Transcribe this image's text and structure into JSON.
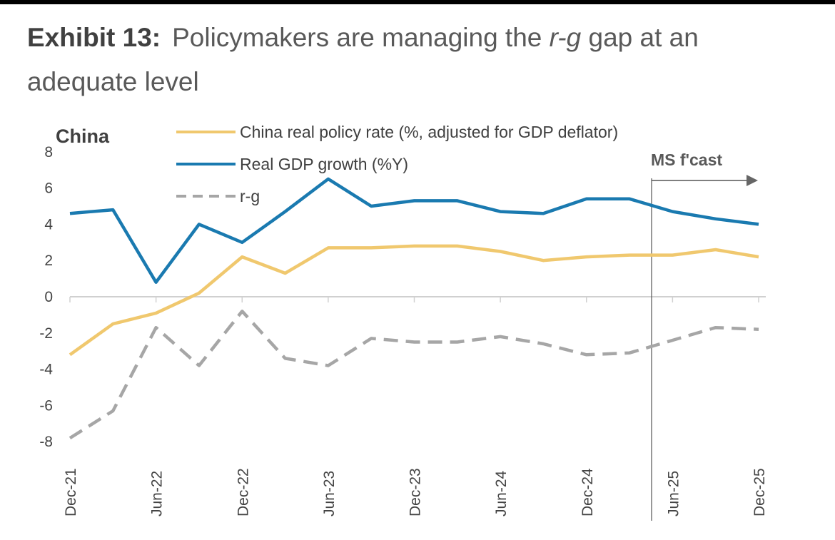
{
  "header": {
    "label": "Exhibit 13:",
    "title_pre": "Policymakers are managing the ",
    "title_em": "r-g",
    "title_post": " gap at an adequate level"
  },
  "chart_data": {
    "type": "line",
    "region_label": "China",
    "forecast_label": "MS f'cast",
    "forecast_start": "Jun-25",
    "x": [
      "Dec-21",
      "Mar-22",
      "Jun-22",
      "Sep-22",
      "Dec-22",
      "Mar-23",
      "Jun-23",
      "Sep-23",
      "Dec-23",
      "Mar-24",
      "Jun-24",
      "Sep-24",
      "Dec-24",
      "Mar-25",
      "Jun-25",
      "Sep-25",
      "Dec-25"
    ],
    "xtick_labels": [
      "Dec-21",
      "Jun-22",
      "Dec-22",
      "Jun-23",
      "Dec-23",
      "Jun-24",
      "Dec-24",
      "Jun-25",
      "Dec-25"
    ],
    "ylim": [
      -8,
      8
    ],
    "yticks": [
      8,
      6,
      4,
      2,
      0,
      -2,
      -4,
      -6,
      -8
    ],
    "series": [
      {
        "name": "China real policy rate (%, adjusted for GDP deflator)",
        "color": "#F0C86E",
        "style": "solid",
        "values": [
          -3.2,
          -1.5,
          -0.9,
          0.2,
          2.2,
          1.3,
          2.7,
          2.7,
          2.8,
          2.8,
          2.5,
          2.0,
          2.2,
          2.3,
          2.3,
          2.6,
          2.2
        ]
      },
      {
        "name": "Real GDP growth (%Y)",
        "color": "#1A7AB0",
        "style": "solid",
        "values": [
          4.6,
          4.8,
          0.8,
          4.0,
          3.0,
          4.7,
          6.5,
          5.0,
          5.3,
          5.3,
          4.7,
          4.6,
          5.4,
          5.4,
          4.7,
          4.3,
          4.0
        ]
      },
      {
        "name": "r-g",
        "color": "#A6A6A6",
        "style": "dashed",
        "values": [
          -7.8,
          -6.3,
          -1.7,
          -3.8,
          -0.8,
          -3.4,
          -3.8,
          -2.3,
          -2.5,
          -2.5,
          -2.2,
          -2.6,
          -3.2,
          -3.1,
          -2.4,
          -1.7,
          -1.8
        ]
      }
    ]
  }
}
